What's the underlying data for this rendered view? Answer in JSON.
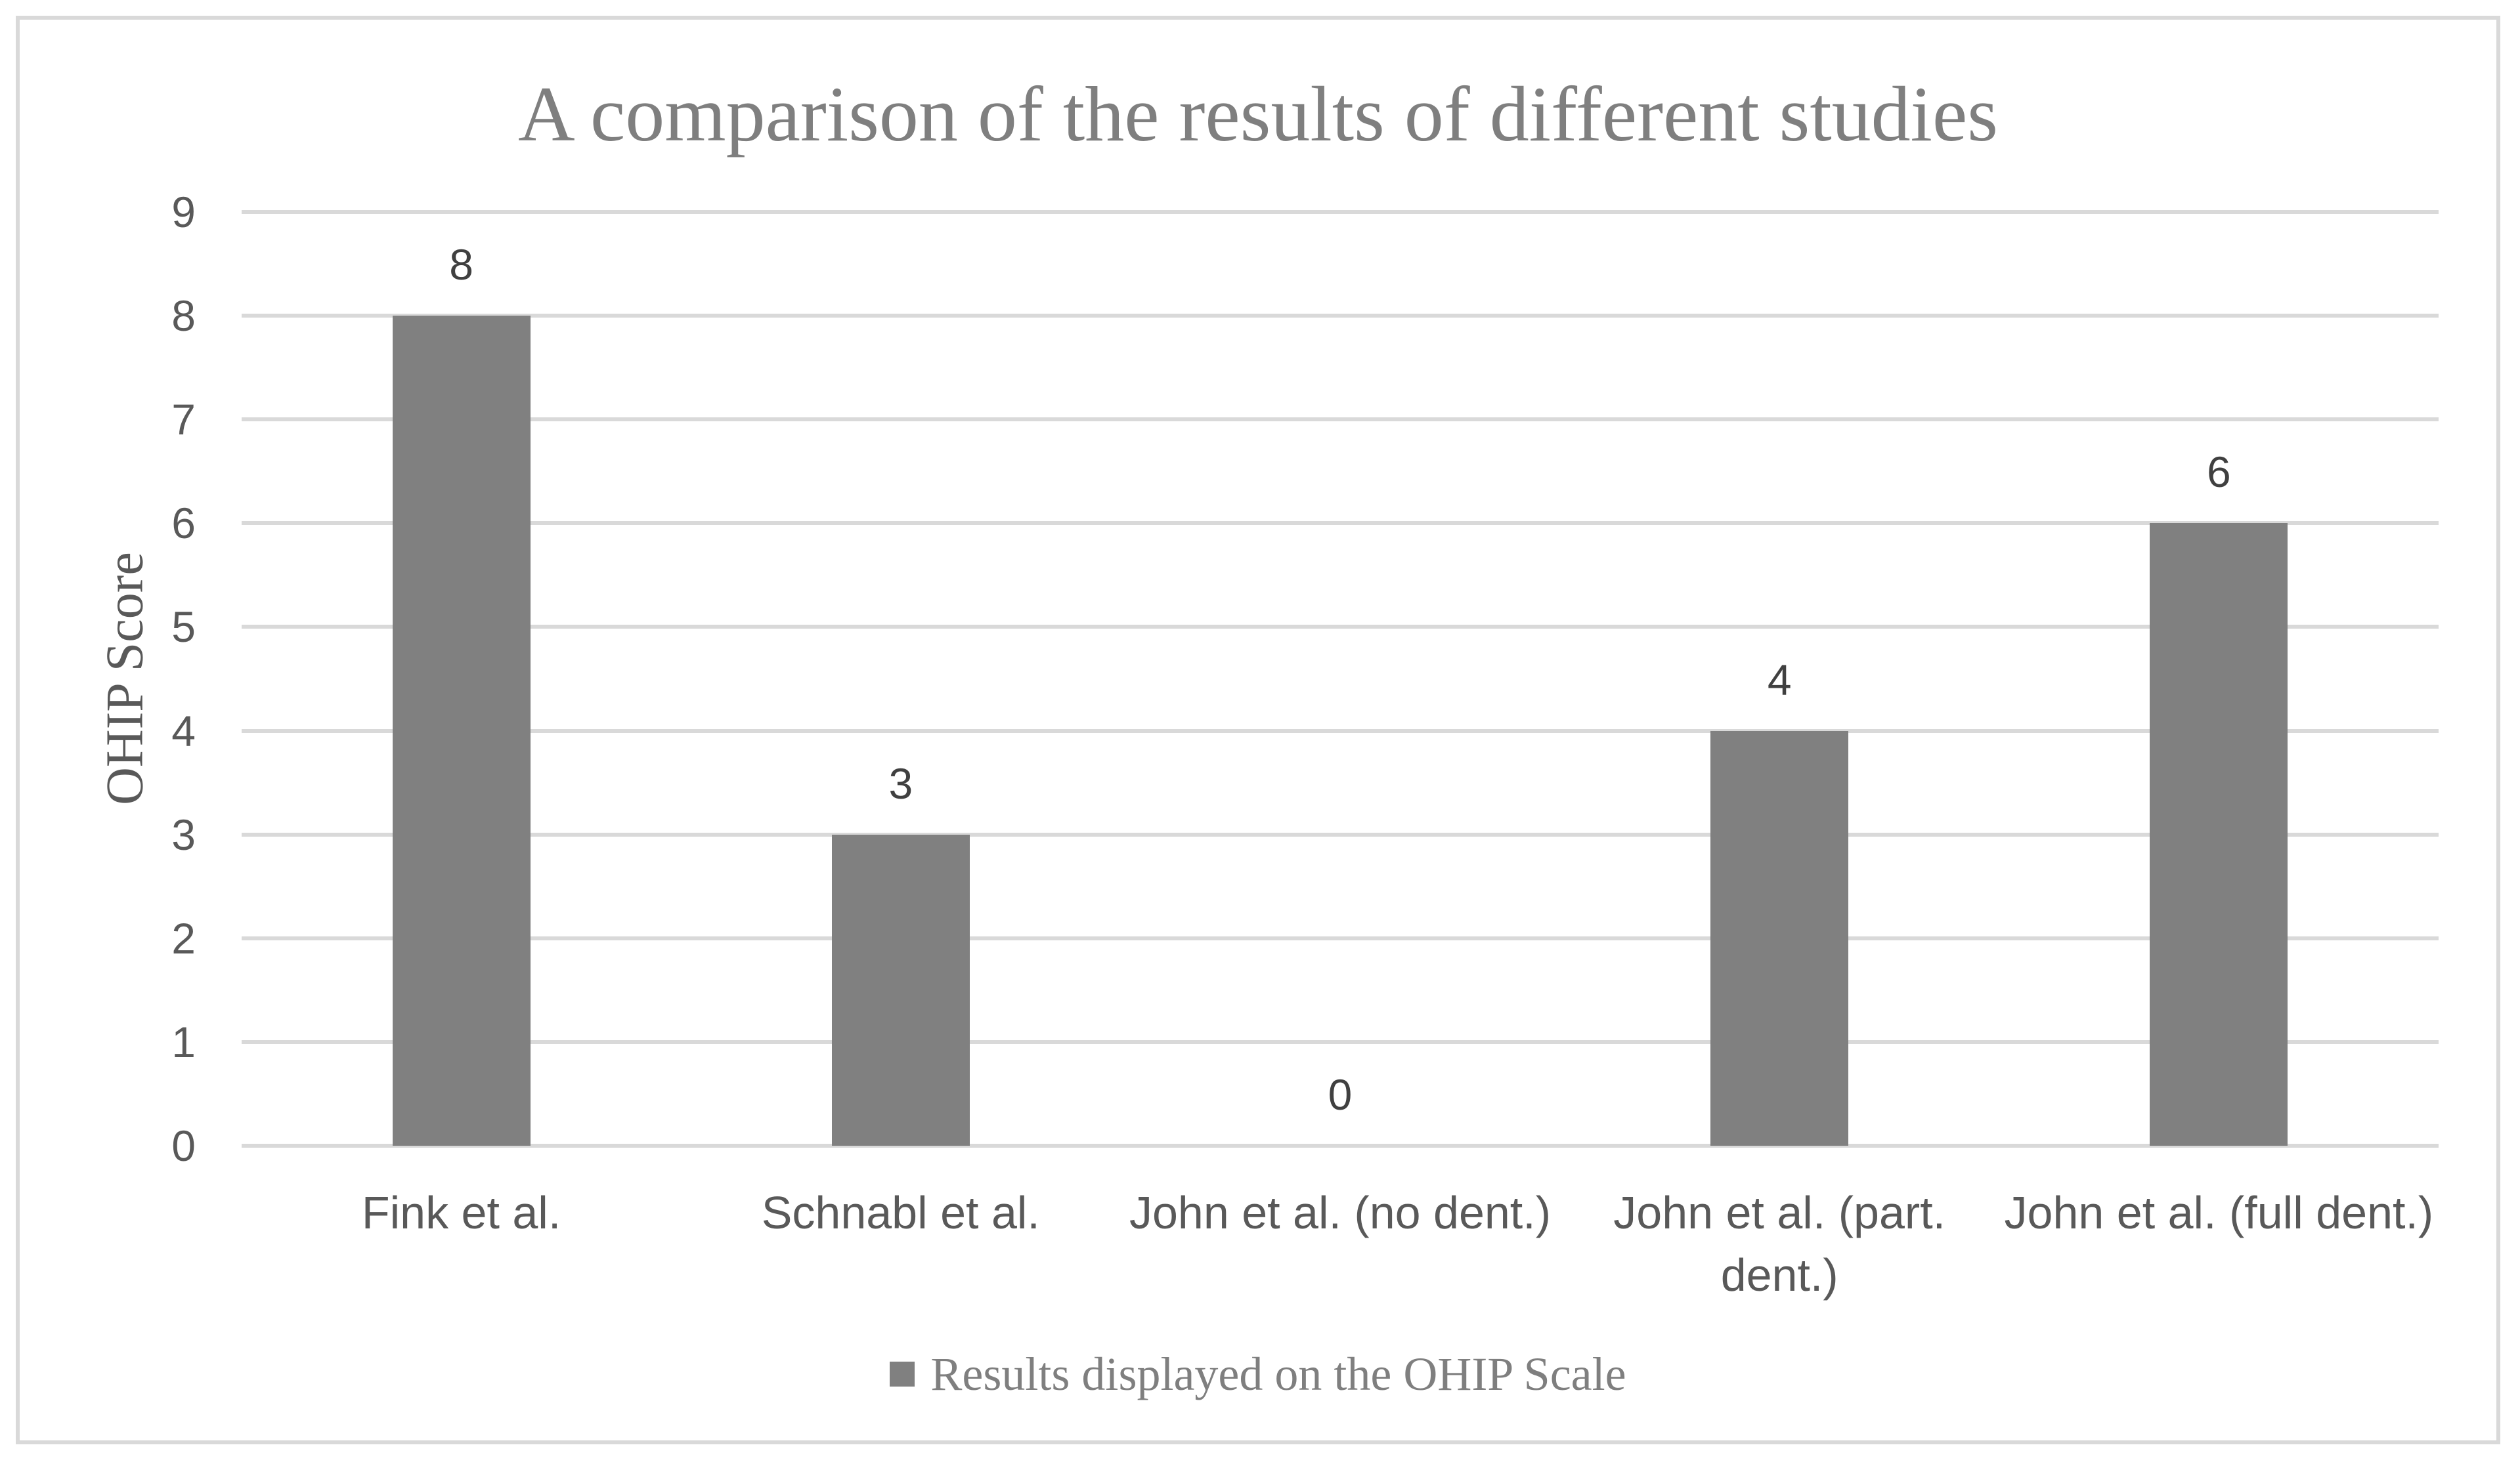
{
  "chart_data": {
    "type": "bar",
    "title": "A comparison of the results of different studies",
    "xlabel": "",
    "ylabel": "OHIP Score",
    "categories": [
      "Fink et al.",
      "Schnabl et al.",
      "John et al. (no dent.)",
      "John et al. (part.\ndent.)",
      "John et al. (full dent.)"
    ],
    "series": [
      {
        "name": "Results displayed on the OHIP Scale",
        "values": [
          8,
          3,
          0,
          4,
          6
        ]
      }
    ],
    "data_labels": [
      "8",
      "3",
      "0",
      "4",
      "6"
    ],
    "y_ticks": [
      0,
      1,
      2,
      3,
      4,
      5,
      6,
      7,
      8,
      9
    ],
    "ylim": [
      0,
      9
    ],
    "grid": true,
    "legend_position": "bottom",
    "legend_label": "Results displayed on the OHIP Scale",
    "colors": {
      "bar_fill": "#808080",
      "gridline": "#d9d9d9",
      "figure_border": "#d9d9d9",
      "axis_text": "#595959",
      "title_text": "#7f7f7f",
      "data_label_text": "#404040",
      "background": "#ffffff"
    }
  }
}
